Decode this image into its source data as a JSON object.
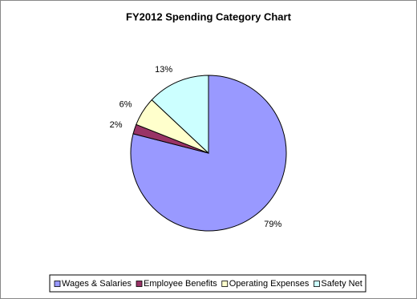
{
  "chart_data": {
    "type": "pie",
    "title": "FY2012 Spending Category Chart",
    "categories": [
      "Wages & Salaries",
      "Employee Benefits",
      "Operating Expenses",
      "Safety Net"
    ],
    "values": [
      79,
      2,
      6,
      13
    ],
    "value_labels": [
      "79%",
      "2%",
      "6%",
      "13%"
    ],
    "colors": [
      "#9999ff",
      "#993366",
      "#ffffcc",
      "#ccffff"
    ],
    "legend": "bottom"
  }
}
